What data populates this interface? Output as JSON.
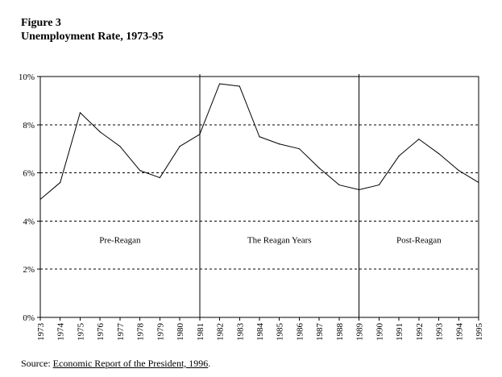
{
  "figure": {
    "number": "Figure 3",
    "title": "Unemployment Rate, 1973-95"
  },
  "source": {
    "prefix": "Source: ",
    "citation": "Economic Report of the President, 1996",
    "suffix": "."
  },
  "colors": {
    "line": "#000000",
    "axis": "#000000",
    "grid": "#000000",
    "background": "#ffffff"
  },
  "chart_data": {
    "type": "line",
    "title": "Unemployment Rate, 1973-95",
    "xlabel": "",
    "ylabel": "",
    "x": [
      "1973",
      "1974",
      "1975",
      "1976",
      "1977",
      "1978",
      "1979",
      "1980",
      "1981",
      "1982",
      "1983",
      "1984",
      "1985",
      "1986",
      "1987",
      "1988",
      "1989",
      "1990",
      "1991",
      "1992",
      "1993",
      "1994",
      "1995"
    ],
    "series": [
      {
        "values": [
          4.9,
          5.6,
          8.5,
          7.7,
          7.1,
          6.1,
          5.8,
          7.1,
          7.6,
          9.7,
          9.6,
          7.5,
          7.2,
          7.0,
          6.2,
          5.5,
          5.3,
          5.5,
          6.7,
          7.4,
          6.8,
          6.1,
          5.6
        ]
      }
    ],
    "ylim": [
      0,
      10
    ],
    "yticks": [
      0,
      2,
      4,
      6,
      8,
      10
    ],
    "ytick_labels": [
      "0%",
      "2%",
      "4%",
      "6%",
      "8%",
      "10%"
    ],
    "grid": {
      "horizontal_dashed_at": [
        2,
        4,
        6,
        8
      ],
      "style": "dashed"
    },
    "period_dividers": [
      "1981",
      "1989"
    ],
    "annotations": [
      {
        "text": "Pre-Reagan",
        "x": "1977",
        "y": 3.1
      },
      {
        "text": "The Reagan Years",
        "x": "1985",
        "y": 3.1
      },
      {
        "text": "Post-Reagan",
        "x": "1992",
        "y": 3.1
      }
    ]
  }
}
